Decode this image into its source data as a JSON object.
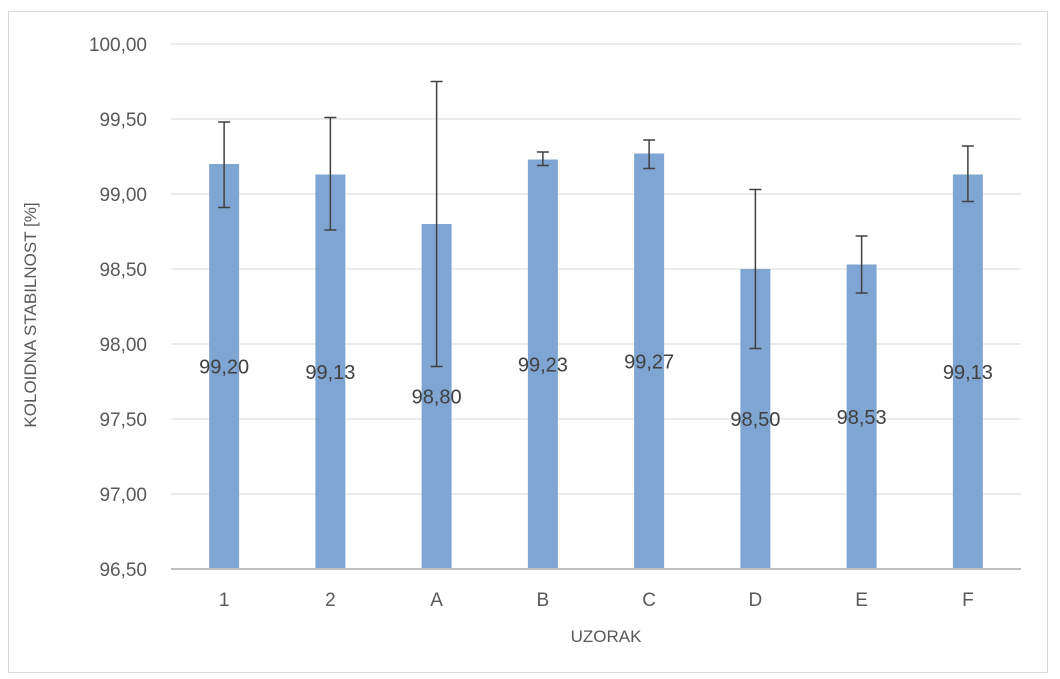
{
  "chart_data": {
    "type": "bar",
    "title": "",
    "xlabel": "UZORAK",
    "ylabel": "KOLOIDNA STABILNOST [%]",
    "ylim": [
      96.5,
      100.0
    ],
    "yticks": [
      "96,50",
      "97,00",
      "97,50",
      "98,00",
      "98,50",
      "99,00",
      "99,50",
      "100,00"
    ],
    "categories": [
      "1",
      "2",
      "A",
      "B",
      "C",
      "D",
      "E",
      "F"
    ],
    "values": [
      99.2,
      99.13,
      98.8,
      99.23,
      99.27,
      98.5,
      98.53,
      99.13
    ],
    "data_labels": [
      "99,20",
      "99,13",
      "98,80",
      "99,23",
      "99,27",
      "98,50",
      "98,53",
      "99,13"
    ],
    "error_bars": [
      [
        98.91,
        99.48
      ],
      [
        98.76,
        99.51
      ],
      [
        97.85,
        99.75
      ],
      [
        99.19,
        99.28
      ],
      [
        99.17,
        99.36
      ],
      [
        97.97,
        99.03
      ],
      [
        98.34,
        98.72
      ],
      [
        98.95,
        99.32
      ]
    ],
    "grid": true,
    "legend": "none",
    "colors": {
      "bar": "#7fa6d2",
      "gridline": "#d9d9d9",
      "axis_line": "#bfbfbf",
      "error_bar": "#404040",
      "text": "#595959"
    }
  }
}
